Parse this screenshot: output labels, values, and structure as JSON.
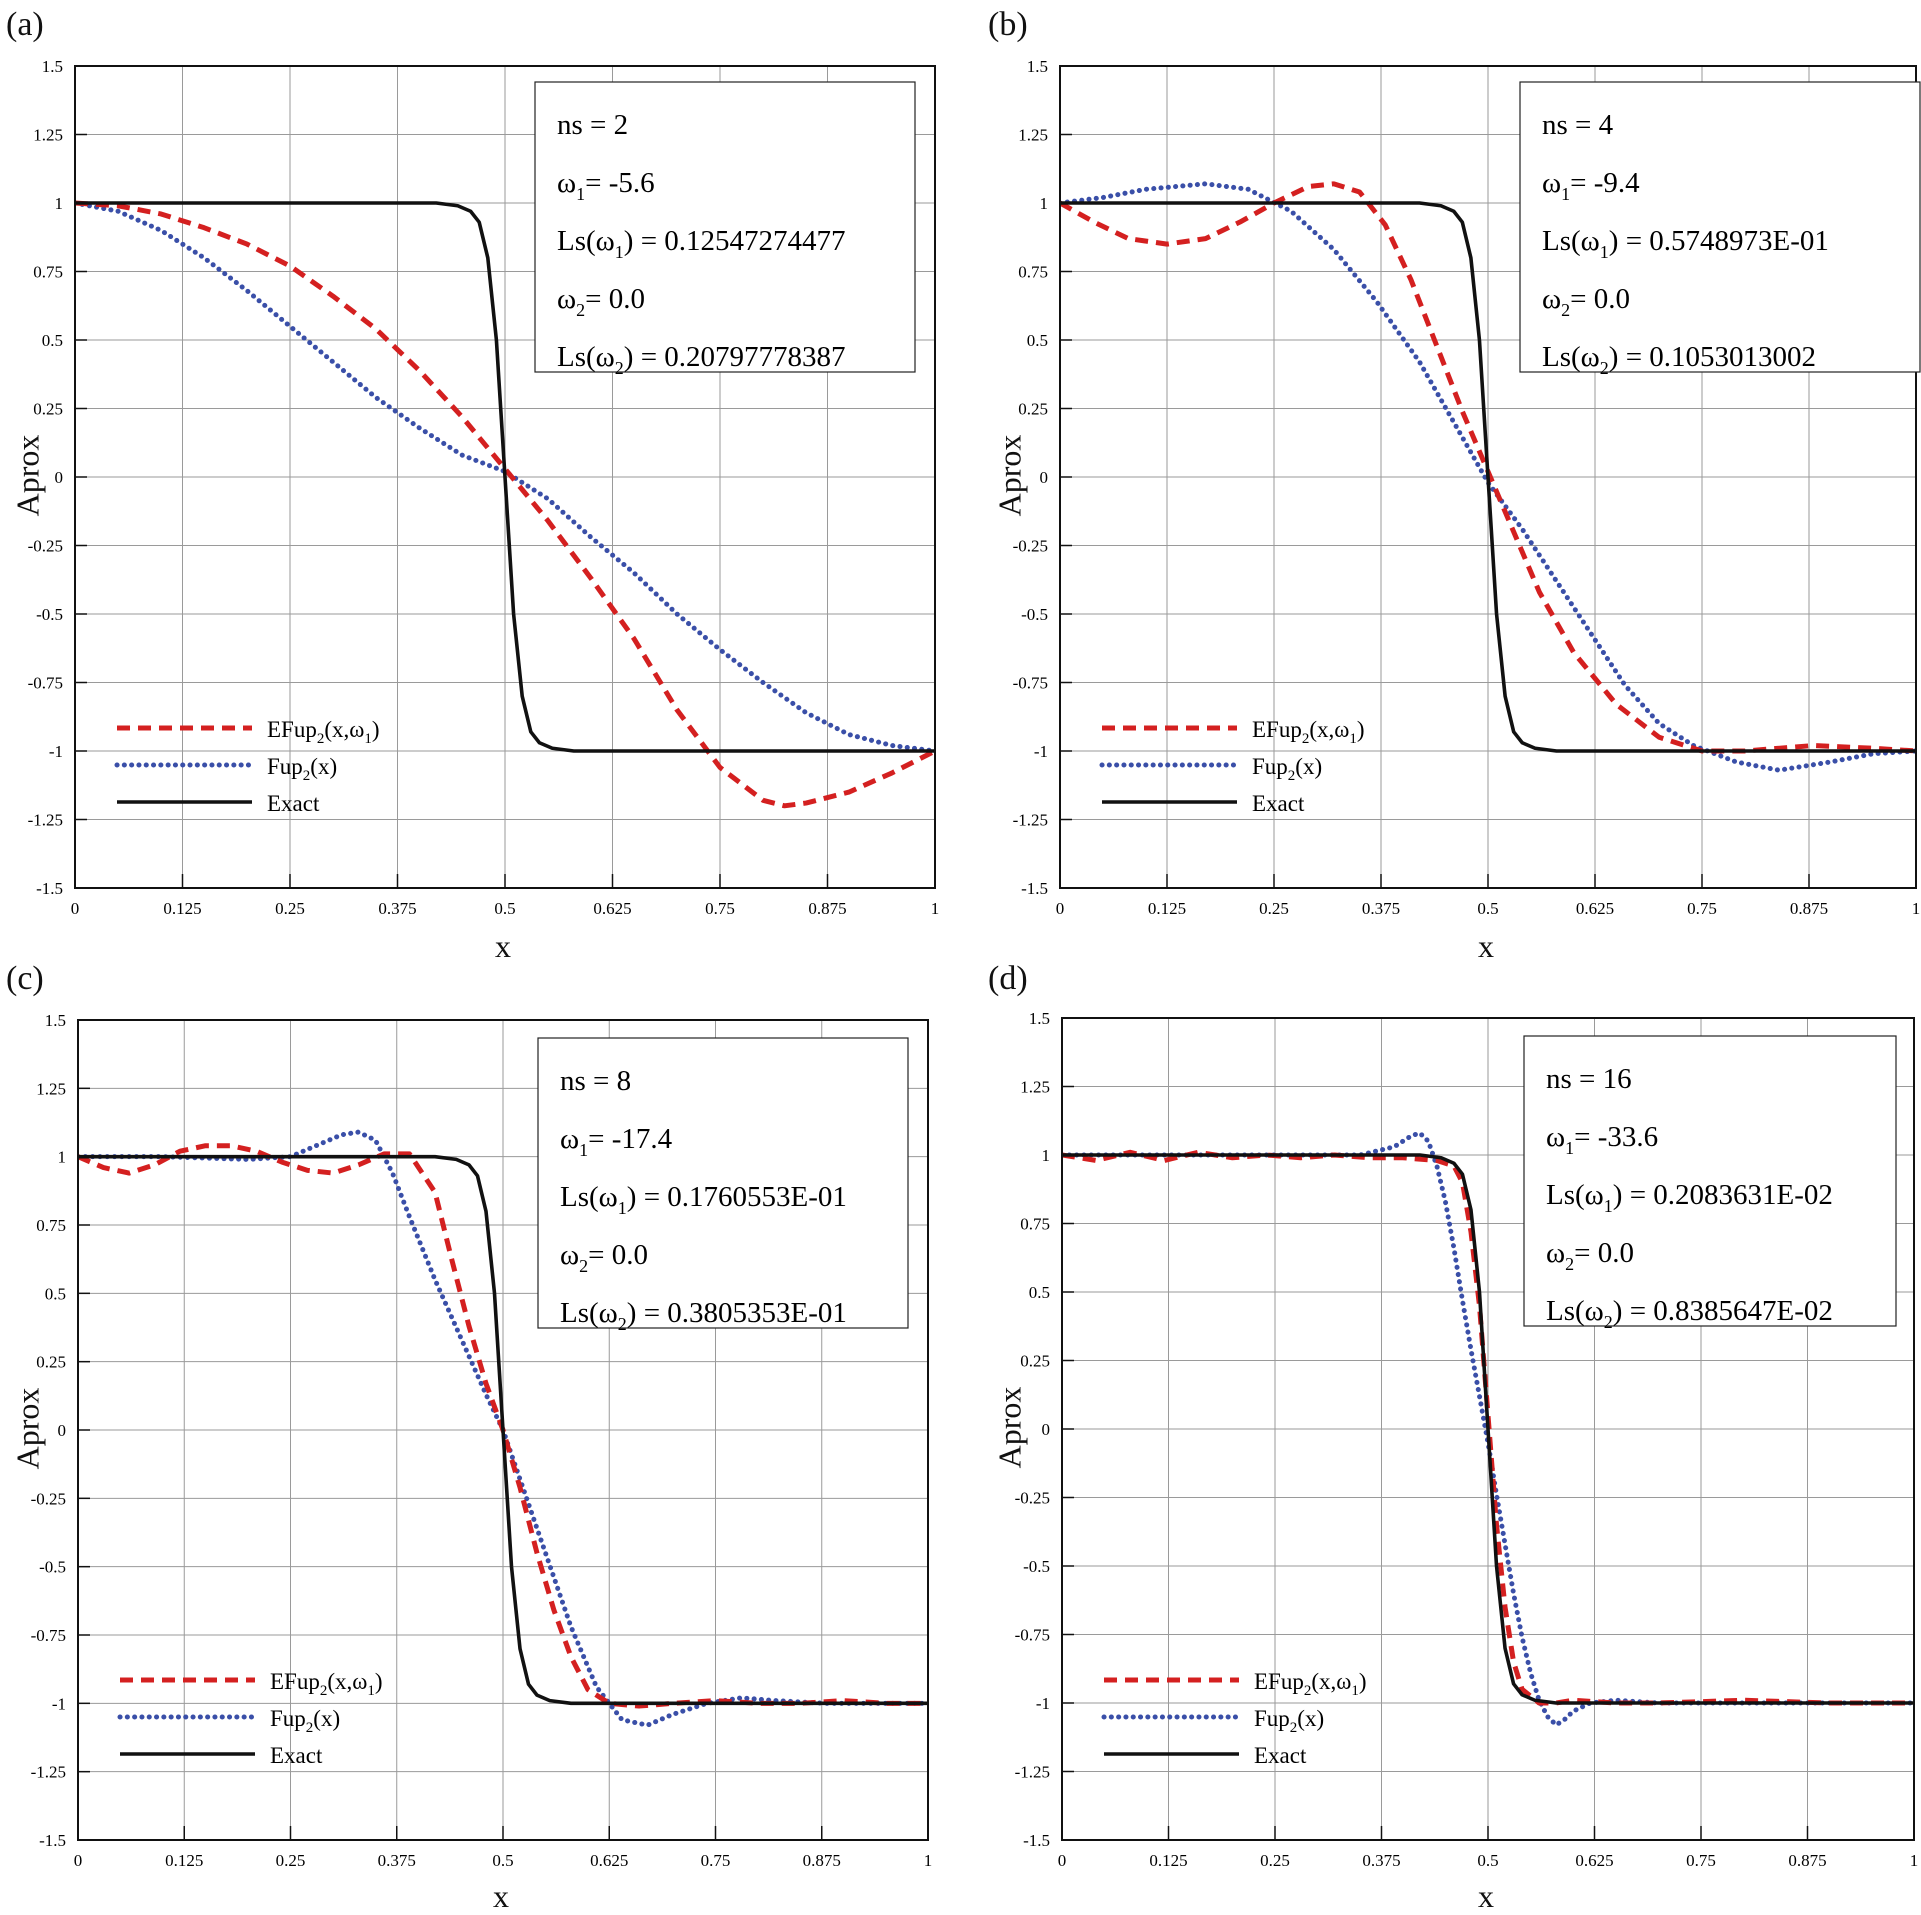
{
  "chart_data": [
    {
      "type": "line",
      "panel": "(a)",
      "xlabel": "x",
      "ylabel": "Aprox",
      "xlim": [
        0,
        1
      ],
      "ylim": [
        -1.5,
        1.5
      ],
      "xticks": [
        "0",
        "0.125",
        "0.25",
        "0.375",
        "0.5",
        "0.625",
        "0.75",
        "0.875",
        "1"
      ],
      "yticks": [
        "1.5",
        "1.25",
        "1",
        "0.75",
        "0.5",
        "0.25",
        "0",
        "-0.25",
        "-0.5",
        "-0.75",
        "-1",
        "-1.25",
        "-1.5"
      ],
      "info": {
        "ns": "ns = 2",
        "w1": "-5.6",
        "ls1": "= 0.12547274477",
        "w2": "0.0",
        "ls2": "= 0.20797778387"
      },
      "legend": [
        "EFup2(x,ω1)",
        "Fup2(x)",
        "Exact"
      ],
      "series": [
        {
          "name": "EFup2(x,ω1)",
          "color": "#d42020",
          "x": [
            0,
            0.05,
            0.1,
            0.15,
            0.2,
            0.25,
            0.3,
            0.35,
            0.4,
            0.45,
            0.5,
            0.55,
            0.6,
            0.65,
            0.7,
            0.75,
            0.8,
            0.825,
            0.85,
            0.9,
            0.95,
            1
          ],
          "y": [
            1,
            0.99,
            0.96,
            0.91,
            0.85,
            0.77,
            0.66,
            0.54,
            0.39,
            0.22,
            0.03,
            -0.16,
            -0.37,
            -0.59,
            -0.85,
            -1.06,
            -1.18,
            -1.2,
            -1.19,
            -1.15,
            -1.08,
            -1
          ]
        },
        {
          "name": "Fup2(x)",
          "color": "#3a4fa8",
          "x": [
            0,
            0.05,
            0.1,
            0.15,
            0.2,
            0.25,
            0.3,
            0.35,
            0.4,
            0.45,
            0.5,
            0.55,
            0.6,
            0.65,
            0.7,
            0.75,
            0.8,
            0.85,
            0.9,
            0.95,
            1
          ],
          "y": [
            1,
            0.97,
            0.9,
            0.8,
            0.68,
            0.55,
            0.42,
            0.29,
            0.18,
            0.08,
            0.02,
            -0.08,
            -0.22,
            -0.35,
            -0.5,
            -0.63,
            -0.75,
            -0.86,
            -0.94,
            -0.98,
            -1
          ]
        },
        {
          "name": "Exact",
          "color": "#111111",
          "x": [
            0,
            0.3,
            0.42,
            0.445,
            0.46,
            0.47,
            0.48,
            0.49,
            0.5,
            0.51,
            0.52,
            0.53,
            0.54,
            0.555,
            0.58,
            0.7,
            1
          ],
          "y": [
            1,
            1,
            1,
            0.99,
            0.97,
            0.93,
            0.8,
            0.5,
            0.0,
            -0.5,
            -0.8,
            -0.93,
            -0.97,
            -0.99,
            -1,
            -1,
            -1
          ]
        }
      ]
    },
    {
      "type": "line",
      "panel": "(b)",
      "xlabel": "x",
      "ylabel": "Aprox",
      "xlim": [
        0,
        1
      ],
      "ylim": [
        -1.5,
        1.5
      ],
      "xticks": [
        "0",
        "0.125",
        "0.25",
        "0.375",
        "0.5",
        "0.625",
        "0.75",
        "0.875",
        "1"
      ],
      "yticks": [
        "1.5",
        "1.25",
        "1",
        "0.75",
        "0.5",
        "0.25",
        "0",
        "-0.25",
        "-0.5",
        "-0.75",
        "-1",
        "-1.25",
        "-1.5"
      ],
      "info": {
        "ns": "ns = 4",
        "w1": "-9.4",
        "ls1": "= 0.5748973E-01",
        "w2": "0.0",
        "ls2": "= 0.1053013002"
      },
      "legend": [
        "EFup2(x,ω1)",
        "Fup2(x)",
        "Exact"
      ],
      "series": [
        {
          "name": "EFup2(x,ω1)",
          "color": "#d42020",
          "x": [
            0,
            0.04,
            0.08,
            0.125,
            0.17,
            0.21,
            0.25,
            0.29,
            0.32,
            0.35,
            0.38,
            0.41,
            0.44,
            0.47,
            0.5,
            0.53,
            0.56,
            0.6,
            0.65,
            0.7,
            0.75,
            0.8,
            0.88,
            0.95,
            1
          ],
          "y": [
            1,
            0.93,
            0.87,
            0.85,
            0.87,
            0.93,
            1.0,
            1.06,
            1.07,
            1.04,
            0.92,
            0.72,
            0.48,
            0.24,
            0.02,
            -0.2,
            -0.42,
            -0.64,
            -0.83,
            -0.95,
            -1.0,
            -1.0,
            -0.98,
            -0.99,
            -1
          ]
        },
        {
          "name": "Fup2(x)",
          "color": "#3a4fa8",
          "x": [
            0,
            0.05,
            0.1,
            0.17,
            0.22,
            0.27,
            0.32,
            0.37,
            0.42,
            0.46,
            0.5,
            0.54,
            0.58,
            0.62,
            0.66,
            0.7,
            0.74,
            0.79,
            0.84,
            0.9,
            0.95,
            1
          ],
          "y": [
            1,
            1.02,
            1.05,
            1.07,
            1.05,
            0.97,
            0.83,
            0.64,
            0.42,
            0.2,
            -0.02,
            -0.19,
            -0.38,
            -0.57,
            -0.76,
            -0.9,
            -0.98,
            -1.04,
            -1.07,
            -1.04,
            -1.01,
            -1
          ]
        },
        {
          "name": "Exact",
          "color": "#111111",
          "x": [
            0,
            0.3,
            0.42,
            0.445,
            0.46,
            0.47,
            0.48,
            0.49,
            0.5,
            0.51,
            0.52,
            0.53,
            0.54,
            0.555,
            0.58,
            0.7,
            1
          ],
          "y": [
            1,
            1,
            1,
            0.99,
            0.97,
            0.93,
            0.8,
            0.5,
            0.0,
            -0.5,
            -0.8,
            -0.93,
            -0.97,
            -0.99,
            -1,
            -1,
            -1
          ]
        }
      ]
    },
    {
      "type": "line",
      "panel": "(c)",
      "xlabel": "x",
      "ylabel": "Aprox",
      "xlim": [
        0,
        1
      ],
      "ylim": [
        -1.5,
        1.5
      ],
      "xticks": [
        "0",
        "0.125",
        "0.25",
        "0.375",
        "0.5",
        "0.625",
        "0.75",
        "0.875",
        "1"
      ],
      "yticks": [
        "1.5",
        "1.25",
        "1",
        "0.75",
        "0.5",
        "0.25",
        "0",
        "-0.25",
        "-0.5",
        "-0.75",
        "-1",
        "-1.25",
        "-1.5"
      ],
      "info": {
        "ns": "ns = 8",
        "w1": "-17.4",
        "ls1": "= 0.1760553E-01",
        "w2": "0.0",
        "ls2": "= 0.3805353E-01"
      },
      "legend": [
        "EFup2(x,ω1)",
        "Fup2(x)",
        "Exact"
      ],
      "series": [
        {
          "name": "EFup2(x,ω1)",
          "color": "#d42020",
          "x": [
            0,
            0.03,
            0.06,
            0.09,
            0.12,
            0.15,
            0.18,
            0.21,
            0.24,
            0.27,
            0.3,
            0.33,
            0.36,
            0.39,
            0.42,
            0.44,
            0.46,
            0.48,
            0.5,
            0.52,
            0.54,
            0.56,
            0.58,
            0.6,
            0.625,
            0.66,
            0.7,
            0.75,
            0.8,
            0.85,
            0.9,
            0.95,
            1
          ],
          "y": [
            1,
            0.96,
            0.94,
            0.97,
            1.02,
            1.04,
            1.04,
            1.02,
            0.98,
            0.95,
            0.94,
            0.97,
            1.01,
            1.01,
            0.87,
            0.62,
            0.38,
            0.17,
            0.0,
            -0.21,
            -0.45,
            -0.66,
            -0.83,
            -0.95,
            -1.0,
            -1.01,
            -1.0,
            -0.99,
            -1.0,
            -1.0,
            -0.99,
            -1.0,
            -1
          ]
        },
        {
          "name": "Fup2(x)",
          "color": "#3a4fa8",
          "x": [
            0,
            0.1,
            0.2,
            0.25,
            0.28,
            0.31,
            0.33,
            0.35,
            0.37,
            0.39,
            0.42,
            0.45,
            0.48,
            0.5,
            0.52,
            0.55,
            0.58,
            0.61,
            0.64,
            0.67,
            0.7,
            0.74,
            0.78,
            0.82,
            0.88,
            0.95,
            1
          ],
          "y": [
            1,
            1.0,
            0.99,
            1.0,
            1.04,
            1.08,
            1.09,
            1.06,
            0.94,
            0.78,
            0.55,
            0.34,
            0.13,
            0.0,
            -0.18,
            -0.45,
            -0.72,
            -0.94,
            -1.06,
            -1.08,
            -1.04,
            -1.0,
            -0.98,
            -0.99,
            -1.0,
            -1.0,
            -1
          ]
        },
        {
          "name": "Exact",
          "color": "#111111",
          "x": [
            0,
            0.3,
            0.42,
            0.445,
            0.46,
            0.47,
            0.48,
            0.49,
            0.5,
            0.51,
            0.52,
            0.53,
            0.54,
            0.555,
            0.58,
            0.7,
            1
          ],
          "y": [
            1,
            1,
            1,
            0.99,
            0.97,
            0.93,
            0.8,
            0.5,
            0.0,
            -0.5,
            -0.8,
            -0.93,
            -0.97,
            -0.99,
            -1,
            -1,
            -1
          ]
        }
      ]
    },
    {
      "type": "line",
      "panel": "(d)",
      "xlabel": "x",
      "ylabel": "Aprox",
      "xlim": [
        0,
        1
      ],
      "ylim": [
        -1.5,
        1.5
      ],
      "xticks": [
        "0",
        "0.125",
        "0.25",
        "0.375",
        "0.5",
        "0.625",
        "0.75",
        "0.875",
        "1"
      ],
      "yticks": [
        "1.5",
        "1.25",
        "1",
        "0.75",
        "0.5",
        "0.25",
        "0",
        "-0.25",
        "-0.5",
        "-0.75",
        "-1",
        "-1.25",
        "-1.5"
      ],
      "info": {
        "ns": "ns = 16",
        "w1": "-33.6",
        "ls1": "= 0.2083631E-02",
        "w2": "0.0",
        "ls2": "= 0.8385647E-02"
      },
      "legend": [
        "EFup2(x,ω1)",
        "Fup2(x)",
        "Exact"
      ],
      "series": [
        {
          "name": "EFup2(x,ω1)",
          "color": "#d42020",
          "x": [
            0,
            0.04,
            0.08,
            0.12,
            0.16,
            0.2,
            0.24,
            0.28,
            0.32,
            0.36,
            0.4,
            0.44,
            0.46,
            0.47,
            0.48,
            0.49,
            0.5,
            0.51,
            0.52,
            0.53,
            0.54,
            0.56,
            0.58,
            0.6,
            0.65,
            0.7,
            0.8,
            0.9,
            1
          ],
          "y": [
            1,
            0.98,
            1.01,
            0.98,
            1.01,
            0.99,
            1.0,
            0.99,
            1.0,
            0.99,
            0.99,
            0.98,
            0.96,
            0.9,
            0.72,
            0.45,
            0.05,
            -0.35,
            -0.65,
            -0.85,
            -0.95,
            -1.0,
            -1.0,
            -0.99,
            -1.0,
            -1.0,
            -0.99,
            -1.0,
            -1
          ]
        },
        {
          "name": "Fup2(x)",
          "color": "#3a4fa8",
          "x": [
            0,
            0.2,
            0.35,
            0.39,
            0.41,
            0.42,
            0.43,
            0.44,
            0.45,
            0.46,
            0.47,
            0.48,
            0.49,
            0.5,
            0.51,
            0.52,
            0.53,
            0.54,
            0.55,
            0.56,
            0.57,
            0.58,
            0.59,
            0.6,
            0.62,
            0.65,
            0.7,
            0.8,
            1
          ],
          "y": [
            1,
            1.0,
            1.0,
            1.03,
            1.07,
            1.08,
            1.05,
            0.96,
            0.83,
            0.66,
            0.47,
            0.29,
            0.12,
            -0.05,
            -0.24,
            -0.42,
            -0.6,
            -0.76,
            -0.89,
            -0.99,
            -1.05,
            -1.08,
            -1.06,
            -1.03,
            -1.0,
            -0.99,
            -1.0,
            -1.0,
            -1
          ]
        },
        {
          "name": "Exact",
          "color": "#111111",
          "x": [
            0,
            0.3,
            0.42,
            0.445,
            0.46,
            0.47,
            0.48,
            0.49,
            0.5,
            0.51,
            0.52,
            0.53,
            0.54,
            0.555,
            0.58,
            0.7,
            1
          ],
          "y": [
            1,
            1,
            1,
            0.99,
            0.97,
            0.93,
            0.8,
            0.5,
            0.0,
            -0.5,
            -0.8,
            -0.93,
            -0.97,
            -0.99,
            -1,
            -1,
            -1
          ]
        }
      ]
    }
  ]
}
